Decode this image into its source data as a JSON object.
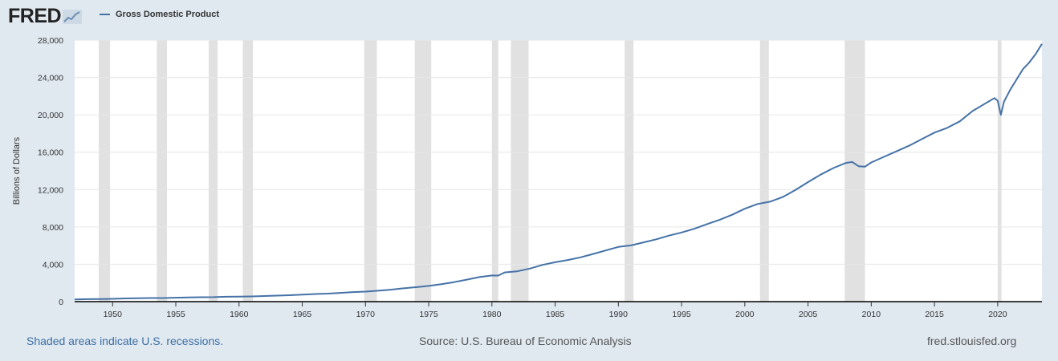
{
  "brand": {
    "logo_text": "FRED"
  },
  "legend": {
    "label": "Gross Domestic Product"
  },
  "footer": {
    "note": "Shaded areas indicate U.S. recessions.",
    "source": "Source: U.S. Bureau of Economic Analysis",
    "url": "fred.stlouisfed.org"
  },
  "colors": {
    "series": "#4572a7",
    "recession": "#e1e1e1",
    "background": "#e1e9f0"
  },
  "chart_data": {
    "type": "line",
    "title": "",
    "ylabel": "Billions of Dollars",
    "xlabel": "",
    "xlim": [
      1947,
      2023.5
    ],
    "ylim": [
      0,
      28000
    ],
    "yticks": [
      0,
      4000,
      8000,
      12000,
      16000,
      20000,
      24000,
      28000
    ],
    "ytick_labels": [
      "0",
      "4,000",
      "8,000",
      "12,000",
      "16,000",
      "20,000",
      "24,000",
      "28,000"
    ],
    "xticks": [
      1950,
      1955,
      1960,
      1965,
      1970,
      1975,
      1980,
      1985,
      1990,
      1995,
      2000,
      2005,
      2010,
      2015,
      2020
    ],
    "grid": true,
    "recessions": [
      [
        1948.9,
        1949.8
      ],
      [
        1953.5,
        1954.3
      ],
      [
        1957.6,
        1958.3
      ],
      [
        1960.3,
        1961.1
      ],
      [
        1969.9,
        1970.9
      ],
      [
        1973.9,
        1975.2
      ],
      [
        1980.0,
        1980.5
      ],
      [
        1981.5,
        1982.9
      ],
      [
        1990.5,
        1991.2
      ],
      [
        2001.2,
        2001.9
      ],
      [
        2007.9,
        2009.5
      ],
      [
        2020.0,
        2020.3
      ]
    ],
    "series": [
      {
        "x": [
          1947,
          1948,
          1949,
          1950,
          1951,
          1952,
          1953,
          1954,
          1955,
          1956,
          1957,
          1958,
          1959,
          1960,
          1961,
          1962,
          1963,
          1964,
          1965,
          1966,
          1967,
          1968,
          1969,
          1970,
          1971,
          1972,
          1973,
          1974,
          1975,
          1976,
          1977,
          1978,
          1979,
          1980,
          1980.5,
          1981,
          1982,
          1983,
          1984,
          1985,
          1986,
          1987,
          1988,
          1989,
          1990,
          1991,
          1992,
          1993,
          1994,
          1995,
          1996,
          1997,
          1998,
          1999,
          2000,
          2001,
          2002,
          2003,
          2004,
          2005,
          2006,
          2007,
          2008,
          2008.5,
          2009,
          2009.5,
          2010,
          2011,
          2012,
          2013,
          2014,
          2015,
          2016,
          2017,
          2018,
          2019,
          2019.75,
          2020,
          2020.25,
          2020.5,
          2021,
          2021.5,
          2022,
          2022.5,
          2023,
          2023.5
        ],
        "y": [
          243,
          270,
          275,
          300,
          345,
          365,
          385,
          390,
          425,
          450,
          475,
          485,
          520,
          540,
          560,
          605,
          640,
          685,
          745,
          815,
          860,
          940,
          1020,
          1075,
          1165,
          1280,
          1425,
          1545,
          1685,
          1875,
          2085,
          2355,
          2630,
          2800,
          2790,
          3130,
          3250,
          3535,
          3930,
          4220,
          4460,
          4740,
          5100,
          5480,
          5860,
          6020,
          6350,
          6670,
          7070,
          7400,
          7800,
          8300,
          8750,
          9300,
          9950,
          10450,
          10700,
          11200,
          11950,
          12800,
          13600,
          14300,
          14850,
          14950,
          14500,
          14450,
          14900,
          15500,
          16100,
          16700,
          17400,
          18100,
          18600,
          19300,
          20400,
          21200,
          21800,
          21500,
          20000,
          21400,
          22700,
          23800,
          24900,
          25600,
          26500,
          27600
        ]
      }
    ]
  }
}
